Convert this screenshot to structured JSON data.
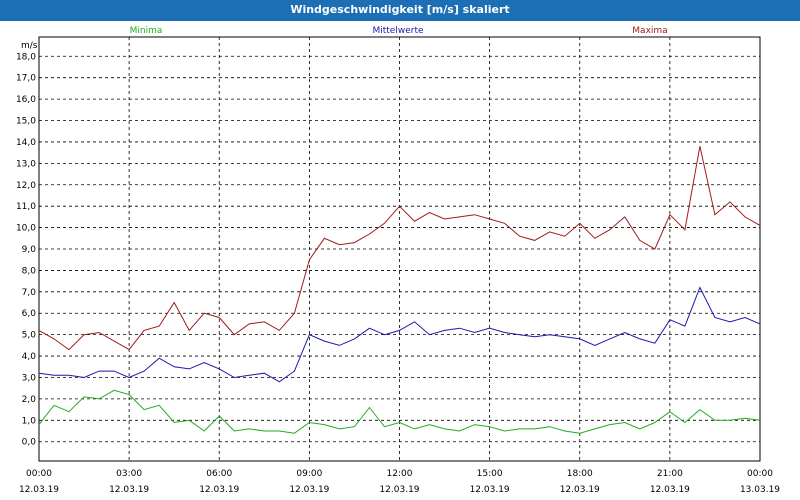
{
  "window": {
    "title": "Windgeschwindigkeit [m/s] skaliert"
  },
  "chart_data": {
    "type": "line",
    "title": "Windgeschwindigkeit [m/s] skaliert",
    "ylabel": "m/s",
    "xlabel": "",
    "ylim": [
      -0.9,
      18.9
    ],
    "xlim_hours": [
      0,
      24
    ],
    "grid": true,
    "legend_placement": "top",
    "y_ticks": [
      "0,0",
      "1,0",
      "2,0",
      "3,0",
      "4,0",
      "5,0",
      "6,0",
      "7,0",
      "8,0",
      "9,0",
      "10,0",
      "11,0",
      "12,0",
      "13,0",
      "14,0",
      "15,0",
      "16,0",
      "17,0",
      "18,0"
    ],
    "x_ticks": [
      {
        "time": "00:00",
        "date": "12.03.19"
      },
      {
        "time": "03:00",
        "date": "12.03.19"
      },
      {
        "time": "06:00",
        "date": "12.03.19"
      },
      {
        "time": "09:00",
        "date": "12.03.19"
      },
      {
        "time": "12:00",
        "date": "12.03.19"
      },
      {
        "time": "15:00",
        "date": "12.03.19"
      },
      {
        "time": "18:00",
        "date": "12.03.19"
      },
      {
        "time": "21:00",
        "date": "12.03.19"
      },
      {
        "time": "00:00",
        "date": "13.03.19"
      }
    ],
    "x_hours": [
      0,
      0.5,
      1,
      1.5,
      2,
      2.5,
      3,
      3.5,
      4,
      4.5,
      5,
      5.5,
      6,
      6.5,
      7,
      7.5,
      8,
      8.5,
      9,
      9.5,
      10,
      10.5,
      11,
      11.5,
      12,
      12.5,
      13,
      13.5,
      14,
      14.5,
      15,
      15.5,
      16,
      16.5,
      17,
      17.5,
      18,
      18.5,
      19,
      19.5,
      20,
      20.5,
      21,
      21.5,
      22,
      22.5,
      23,
      23.5,
      24
    ],
    "series": [
      {
        "name": "Minima",
        "color": "#22aa22",
        "values": [
          0.8,
          1.7,
          1.4,
          2.1,
          2.0,
          2.4,
          2.2,
          1.5,
          1.7,
          0.9,
          1.0,
          0.5,
          1.2,
          0.5,
          0.6,
          0.5,
          0.5,
          0.4,
          0.9,
          0.8,
          0.6,
          0.7,
          1.6,
          0.7,
          0.9,
          0.6,
          0.8,
          0.6,
          0.5,
          0.8,
          0.7,
          0.5,
          0.6,
          0.6,
          0.7,
          0.5,
          0.4,
          0.6,
          0.8,
          0.9,
          0.6,
          0.9,
          1.4,
          0.9,
          1.5,
          1.0,
          1.0,
          1.1,
          1.0
        ]
      },
      {
        "name": "Mittelwerte",
        "color": "#1a1aaa",
        "values": [
          3.2,
          3.1,
          3.1,
          3.0,
          3.3,
          3.3,
          3.0,
          3.3,
          3.9,
          3.5,
          3.4,
          3.7,
          3.4,
          3.0,
          3.1,
          3.2,
          2.8,
          3.3,
          5.0,
          4.7,
          4.5,
          4.8,
          5.3,
          5.0,
          5.2,
          5.6,
          5.0,
          5.2,
          5.3,
          5.1,
          5.3,
          5.1,
          5.0,
          4.9,
          5.0,
          4.9,
          4.8,
          4.5,
          4.8,
          5.1,
          4.8,
          4.6,
          5.7,
          5.4,
          7.2,
          5.8,
          5.6,
          5.8,
          5.5
        ]
      },
      {
        "name": "Maxima",
        "color": "#a01a1a",
        "values": [
          5.2,
          4.8,
          4.3,
          5.0,
          5.1,
          4.7,
          4.3,
          5.2,
          5.4,
          6.5,
          5.2,
          6.0,
          5.8,
          5.0,
          5.5,
          5.6,
          5.2,
          6.0,
          8.5,
          9.5,
          9.2,
          9.3,
          9.7,
          10.2,
          11.0,
          10.3,
          10.7,
          10.4,
          10.5,
          10.6,
          10.4,
          10.2,
          9.6,
          9.4,
          9.8,
          9.6,
          10.2,
          9.5,
          9.9,
          10.5,
          9.4,
          9.0,
          10.6,
          9.9,
          13.8,
          10.6,
          11.2,
          10.5,
          10.1
        ]
      }
    ]
  }
}
